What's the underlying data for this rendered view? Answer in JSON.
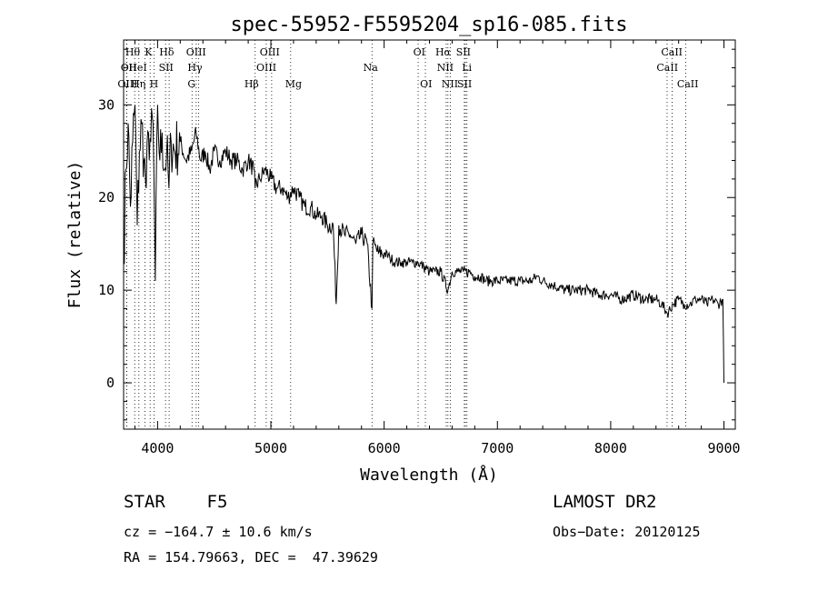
{
  "chart_data": {
    "type": "line",
    "title": "spec-55952-F5595204_sp16-085.fits",
    "xlabel": "Wavelength (Å)",
    "ylabel": "Flux (relative)",
    "xlim": [
      3700,
      9100
    ],
    "ylim": [
      -5,
      37
    ],
    "xticks": [
      4000,
      5000,
      6000,
      7000,
      8000,
      9000
    ],
    "yticks": [
      0,
      10,
      20,
      30
    ],
    "grid": false,
    "series": [
      {
        "x": [
          3700,
          3720,
          3740,
          3760,
          3780,
          3800,
          3820,
          3840,
          3860,
          3880,
          3900,
          3920,
          3940,
          3960,
          3980,
          4000,
          4020,
          4040,
          4060,
          4080,
          4100,
          4120,
          4150,
          4200,
          4250,
          4300,
          4340,
          4380,
          4420,
          4460,
          4500,
          4550,
          4600,
          4650,
          4700,
          4750,
          4800,
          4850,
          4861,
          4900,
          4950,
          5000,
          5050,
          5100,
          5150,
          5200,
          5250,
          5300,
          5350,
          5400,
          5450,
          5500,
          5550,
          5577,
          5600,
          5650,
          5700,
          5750,
          5800,
          5850,
          5893,
          5900,
          5950,
          6000,
          6050,
          6100,
          6150,
          6200,
          6250,
          6300,
          6350,
          6400,
          6450,
          6500,
          6563,
          6600,
          6650,
          6700,
          6750,
          6800,
          6850,
          6900,
          6950,
          7000,
          7100,
          7200,
          7300,
          7350,
          7400,
          7500,
          7600,
          7700,
          7800,
          7900,
          8000,
          8100,
          8200,
          8300,
          8400,
          8450,
          8500,
          8550,
          8600,
          8650,
          8700,
          8750,
          8800,
          8850,
          8900,
          8950,
          8990,
          9000
        ],
        "y": [
          13,
          23,
          28,
          19,
          26,
          30,
          17,
          25,
          28,
          24,
          21,
          27,
          26,
          28,
          11,
          30,
          24,
          27,
          23,
          25,
          21,
          26,
          25,
          26,
          24,
          25,
          27,
          24,
          25,
          23,
          25,
          24,
          25,
          24,
          24,
          23,
          24,
          23,
          21,
          22,
          23,
          22,
          21,
          21,
          20,
          21,
          20,
          19,
          19,
          18,
          18,
          17,
          17,
          8.5,
          17,
          16,
          16,
          15,
          16,
          15,
          8,
          15,
          14,
          14,
          13.5,
          13,
          13,
          13,
          13,
          13,
          12.5,
          12,
          12,
          12,
          10,
          12,
          12,
          12,
          12,
          11.5,
          11.5,
          11,
          11,
          11,
          11,
          11,
          11,
          11.5,
          11,
          10.5,
          10,
          10,
          10,
          9.5,
          9.5,
          9,
          9.5,
          9,
          9,
          8.5,
          7.5,
          8.5,
          9,
          8.5,
          8.5,
          9,
          9,
          8.5,
          9,
          8.5,
          9,
          0
        ]
      }
    ],
    "lines": [
      {
        "label": "Hθ",
        "x": 3798,
        "row": 0,
        "label_x": 3780
      },
      {
        "label": "OII",
        "x": 3727,
        "row": 1,
        "label_x": 3745
      },
      {
        "label": "OIII",
        "x": 3727,
        "row": 2,
        "label_x": 3735
      },
      {
        "label": "Hη",
        "x": 3835,
        "row": 2,
        "label_x": 3830
      },
      {
        "label": "K",
        "x": 3934,
        "row": 0,
        "label_x": 3920
      },
      {
        "label": "HeI",
        "x": 3889,
        "row": 1,
        "label_x": 3825
      },
      {
        "label": "SII",
        "x": 4070,
        "row": 1,
        "label_x": 4075
      },
      {
        "label": "H",
        "x": 3969,
        "row": 2,
        "label_x": 3968
      },
      {
        "label": "Hδ",
        "x": 4102,
        "row": 0,
        "label_x": 4080
      },
      {
        "label": "OIII",
        "x": 4363,
        "row": 0,
        "label_x": 4340
      },
      {
        "label": "Hγ",
        "x": 4341,
        "row": 1,
        "label_x": 4330
      },
      {
        "label": "G",
        "x": 4304,
        "row": 2,
        "label_x": 4300
      },
      {
        "label": "Hβ",
        "x": 4861,
        "row": 2,
        "label_x": 4830
      },
      {
        "label": "OIII",
        "x": 4959,
        "row": 0,
        "label_x": 4990
      },
      {
        "label": "OIII",
        "x": 5007,
        "row": 1,
        "label_x": 4960
      },
      {
        "label": "Mg",
        "x": 5175,
        "row": 2,
        "label_x": 5200
      },
      {
        "label": "Na",
        "x": 5893,
        "row": 1,
        "label_x": 5880
      },
      {
        "label": "OI",
        "x": 6300,
        "row": 0,
        "label_x": 6310
      },
      {
        "label": "OI",
        "x": 6364,
        "row": 2,
        "label_x": 6370
      },
      {
        "label": "Hα",
        "x": 6563,
        "row": 0,
        "label_x": 6520
      },
      {
        "label": "SII",
        "x": 6717,
        "row": 0,
        "label_x": 6700
      },
      {
        "label": "NII",
        "x": 6548,
        "row": 1,
        "label_x": 6540
      },
      {
        "label": "Li",
        "x": 6708,
        "row": 1,
        "label_x": 6730
      },
      {
        "label": "NII",
        "x": 6584,
        "row": 2,
        "label_x": 6580
      },
      {
        "label": "SII",
        "x": 6731,
        "row": 2,
        "label_x": 6710
      },
      {
        "label": "CaII",
        "x": 8542,
        "row": 0,
        "label_x": 8540
      },
      {
        "label": "CaII",
        "x": 8498,
        "row": 1,
        "label_x": 8500
      },
      {
        "label": "CaII",
        "x": 8662,
        "row": 2,
        "label_x": 8680
      }
    ]
  },
  "info": {
    "object": "STAR    F5",
    "survey": "LAMOST DR2",
    "cz": "cz = −164.7 ± 10.6 km/s",
    "obs_date": "Obs−Date: 20120125",
    "coords": "RA = 154.79663, DEC =  47.39629"
  }
}
